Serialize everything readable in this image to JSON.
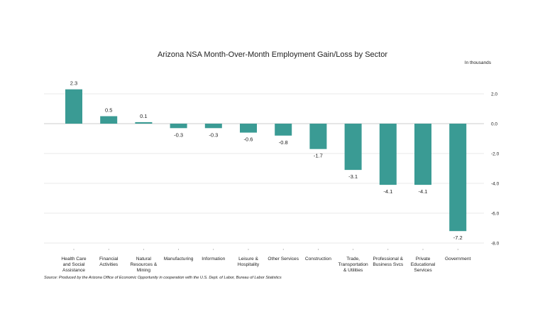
{
  "chart_data": {
    "type": "bar",
    "title": "Arizona NSA Month-Over-Month Employment Gain/Loss by Sector",
    "unit_label": "In thousands",
    "categories": [
      [
        "Health Care",
        "and Social",
        "Assistance"
      ],
      [
        "Financial",
        "Activities"
      ],
      [
        "Natural",
        "Resources &",
        "Mining"
      ],
      [
        "Manufacturing"
      ],
      [
        "Information"
      ],
      [
        "Leisure &",
        "Hospitality"
      ],
      [
        "Other Services"
      ],
      [
        "Construction"
      ],
      [
        "Trade,",
        "Transportation",
        "& Utilities"
      ],
      [
        "Professional &",
        "Business Svcs"
      ],
      [
        "Private",
        "Educational",
        "Services"
      ],
      [
        "Government"
      ]
    ],
    "values": [
      2.3,
      0.5,
      0.1,
      -0.3,
      -0.3,
      -0.6,
      -0.8,
      -1.7,
      -3.1,
      -4.1,
      -4.1,
      -7.2
    ],
    "value_labels": [
      "2.3",
      "0.5",
      "0.1",
      "-0.3",
      "-0.3",
      "-0.6",
      "-0.8",
      "-1.7",
      "-3.1",
      "-4.1",
      "-4.1",
      "-7.2"
    ],
    "yticks": [
      2.0,
      0.0,
      -2.0,
      -4.0,
      -6.0,
      -8.0
    ],
    "ytick_labels": [
      "2.0",
      "0.0",
      "-2.0",
      "-4.0",
      "-6.0",
      "-8.0"
    ],
    "ylim": [
      -8,
      2.8
    ],
    "y_axis_position": "right",
    "grid": true,
    "bar_color": "#3a9b94",
    "source": "Source: Produced by the Arizona Office of Economic Opportunity in cooperation with the U.S. Dept. of Labor, Bureau of Labor Statistics"
  }
}
